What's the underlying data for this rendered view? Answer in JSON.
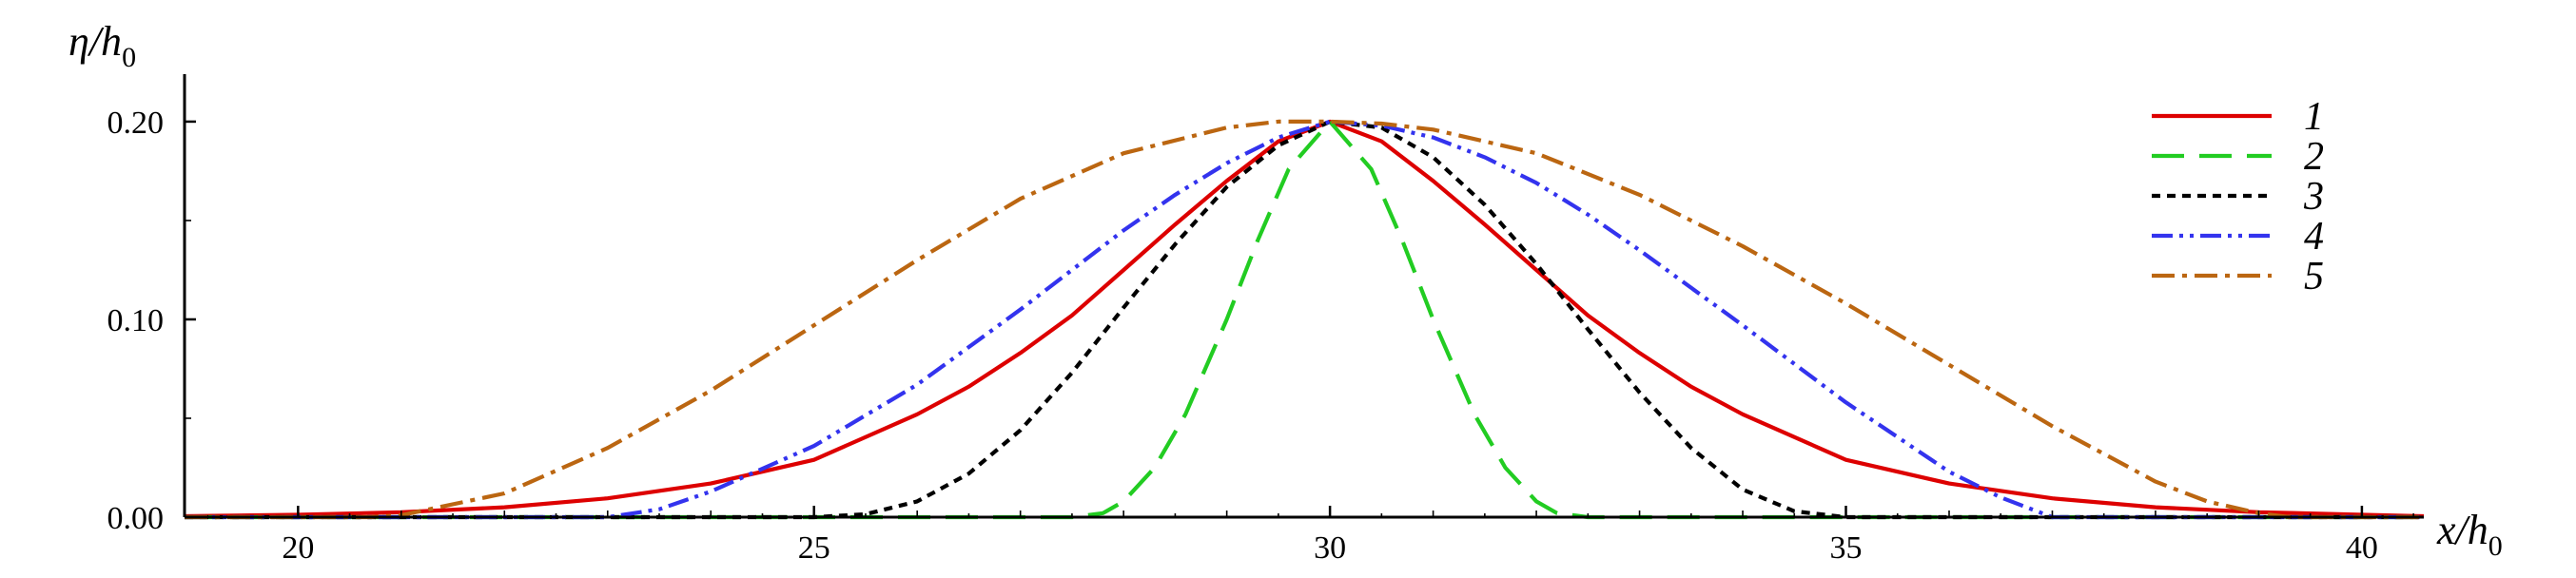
{
  "chart_data": {
    "type": "line",
    "ylabel": {
      "main": "η/h",
      "sub": "0"
    },
    "xlabel": {
      "main": "x/h",
      "sub": "0"
    },
    "xlim": [
      18.9,
      40.6
    ],
    "ylim": [
      0,
      0.224
    ],
    "xticks": [
      20,
      25,
      30,
      35,
      40
    ],
    "xtick_labels": [
      "20",
      "25",
      "30",
      "35",
      "40"
    ],
    "yticks": [
      0,
      0.1,
      0.2
    ],
    "ytick_labels": [
      "0.00",
      "0.10",
      "0.20"
    ],
    "grid": false,
    "legend_position": "top-right",
    "series": [
      {
        "name": "1",
        "color": "#dd0000",
        "dash": "solid",
        "x": [
          18.9,
          20,
          21,
          22,
          23,
          24,
          25,
          26,
          26.5,
          27,
          27.5,
          28,
          28.5,
          29,
          29.5,
          30,
          30.5,
          31,
          31.5,
          32,
          32.5,
          33,
          33.5,
          34,
          35,
          36,
          37,
          38,
          39,
          40,
          40.6
        ],
        "y": [
          0.0005,
          0.0012,
          0.0025,
          0.005,
          0.0095,
          0.017,
          0.029,
          0.052,
          0.066,
          0.083,
          0.102,
          0.125,
          0.148,
          0.17,
          0.19,
          0.2,
          0.19,
          0.17,
          0.148,
          0.125,
          0.102,
          0.083,
          0.066,
          0.052,
          0.029,
          0.017,
          0.0095,
          0.005,
          0.0025,
          0.0012,
          0.0005
        ]
      },
      {
        "name": "2",
        "color": "#22cc22",
        "dash": "long-dash",
        "x": [
          18.9,
          27.5,
          27.8,
          28,
          28.3,
          28.6,
          29,
          29.3,
          29.6,
          30,
          30.4,
          30.7,
          31,
          31.4,
          31.7,
          32,
          32.2,
          32.5,
          40.6
        ],
        "y": [
          0,
          0,
          0.002,
          0.008,
          0.025,
          0.052,
          0.1,
          0.14,
          0.176,
          0.2,
          0.176,
          0.14,
          0.1,
          0.052,
          0.025,
          0.008,
          0.002,
          0,
          0
        ]
      },
      {
        "name": "3",
        "color": "#000000",
        "dash": "short-dash",
        "x": [
          18.9,
          25,
          25.5,
          26,
          26.5,
          27,
          27.5,
          28,
          28.5,
          29,
          29.5,
          30,
          30.5,
          31,
          31.5,
          32,
          32.5,
          33,
          33.5,
          34,
          34.5,
          35,
          40.6
        ],
        "y": [
          0,
          0,
          0.0015,
          0.008,
          0.022,
          0.044,
          0.073,
          0.106,
          0.138,
          0.167,
          0.188,
          0.2,
          0.197,
          0.182,
          0.158,
          0.128,
          0.095,
          0.063,
          0.035,
          0.014,
          0.003,
          0,
          0
        ]
      },
      {
        "name": "4",
        "color": "#3333ee",
        "dash": "dash-dot-dot",
        "x": [
          18.9,
          23,
          23.5,
          24,
          25,
          26,
          27,
          28,
          28.5,
          29,
          29.5,
          30,
          30.5,
          31,
          31.5,
          32,
          32.5,
          33,
          34,
          35,
          36,
          36.5,
          37,
          40.6
        ],
        "y": [
          0,
          0,
          0.004,
          0.013,
          0.036,
          0.067,
          0.105,
          0.145,
          0.163,
          0.179,
          0.192,
          0.2,
          0.198,
          0.192,
          0.182,
          0.169,
          0.153,
          0.135,
          0.097,
          0.058,
          0.023,
          0.01,
          0,
          0
        ]
      },
      {
        "name": "5",
        "color": "#bb6611",
        "dash": "dash-dot",
        "x": [
          18.9,
          20.7,
          21,
          22,
          23,
          24,
          25,
          26,
          27,
          28,
          29,
          29.5,
          30,
          30.5,
          31,
          32,
          33,
          34,
          35,
          36,
          37,
          38,
          38.5,
          39,
          39.3,
          40.6
        ],
        "y": [
          0,
          0,
          0.001,
          0.012,
          0.035,
          0.064,
          0.097,
          0.13,
          0.161,
          0.184,
          0.197,
          0.2,
          0.2,
          0.199,
          0.196,
          0.184,
          0.163,
          0.137,
          0.108,
          0.077,
          0.046,
          0.018,
          0.008,
          0.002,
          0,
          0
        ]
      }
    ]
  }
}
